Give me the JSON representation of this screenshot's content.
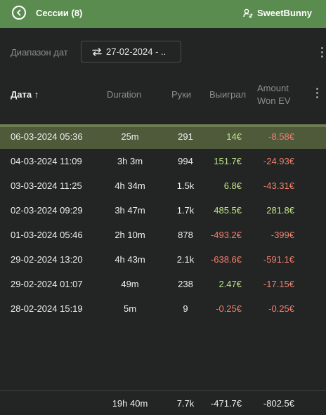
{
  "header": {
    "title": "Сессии (8)",
    "user": "SweetBunny"
  },
  "filter": {
    "label": "Диапазон дат",
    "range": "27-02-2024 - .."
  },
  "columns": {
    "date": "Дата",
    "duration": "Duration",
    "hands": "Руки",
    "won": "Выиграл",
    "ev_line1": "Amount",
    "ev_line2": "Won EV"
  },
  "rows": [
    {
      "date": "06-03-2024 05:36",
      "duration": "25m",
      "hands": "291",
      "won": "14€",
      "ev": "-8.58€"
    },
    {
      "date": "04-03-2024 11:09",
      "duration": "3h 3m",
      "hands": "994",
      "won": "151.7€",
      "ev": "-24.93€"
    },
    {
      "date": "03-03-2024 11:25",
      "duration": "4h 34m",
      "hands": "1.5k",
      "won": "6.8€",
      "ev": "-43.31€"
    },
    {
      "date": "02-03-2024 09:29",
      "duration": "3h 47m",
      "hands": "1.7k",
      "won": "485.5€",
      "ev": "281.8€"
    },
    {
      "date": "01-03-2024 05:46",
      "duration": "2h 10m",
      "hands": "878",
      "won": "-493.2€",
      "ev": "-399€"
    },
    {
      "date": "29-02-2024 13:20",
      "duration": "4h 43m",
      "hands": "2.1k",
      "won": "-638.6€",
      "ev": "-591.1€"
    },
    {
      "date": "29-02-2024 01:07",
      "duration": "49m",
      "hands": "238",
      "won": "2.47€",
      "ev": "-17.15€"
    },
    {
      "date": "28-02-2024 15:19",
      "duration": "5m",
      "hands": "9",
      "won": "-0.25€",
      "ev": "-0.25€"
    }
  ],
  "totals": {
    "duration": "19h 40m",
    "hands": "7.7k",
    "won": "-471.7€",
    "ev": "-802.5€"
  },
  "colors": {
    "header_bg": "#5b8c4f",
    "positive": "#bfe38a",
    "negative": "#f07f6e",
    "highlight_row": "#4f5a3b"
  },
  "icons": {
    "back": "back-arrow-icon",
    "user": "user-switch-icon",
    "range": "swap-arrows-icon",
    "menu": "kebab-menu-icon",
    "sort": "sort-up-icon"
  }
}
